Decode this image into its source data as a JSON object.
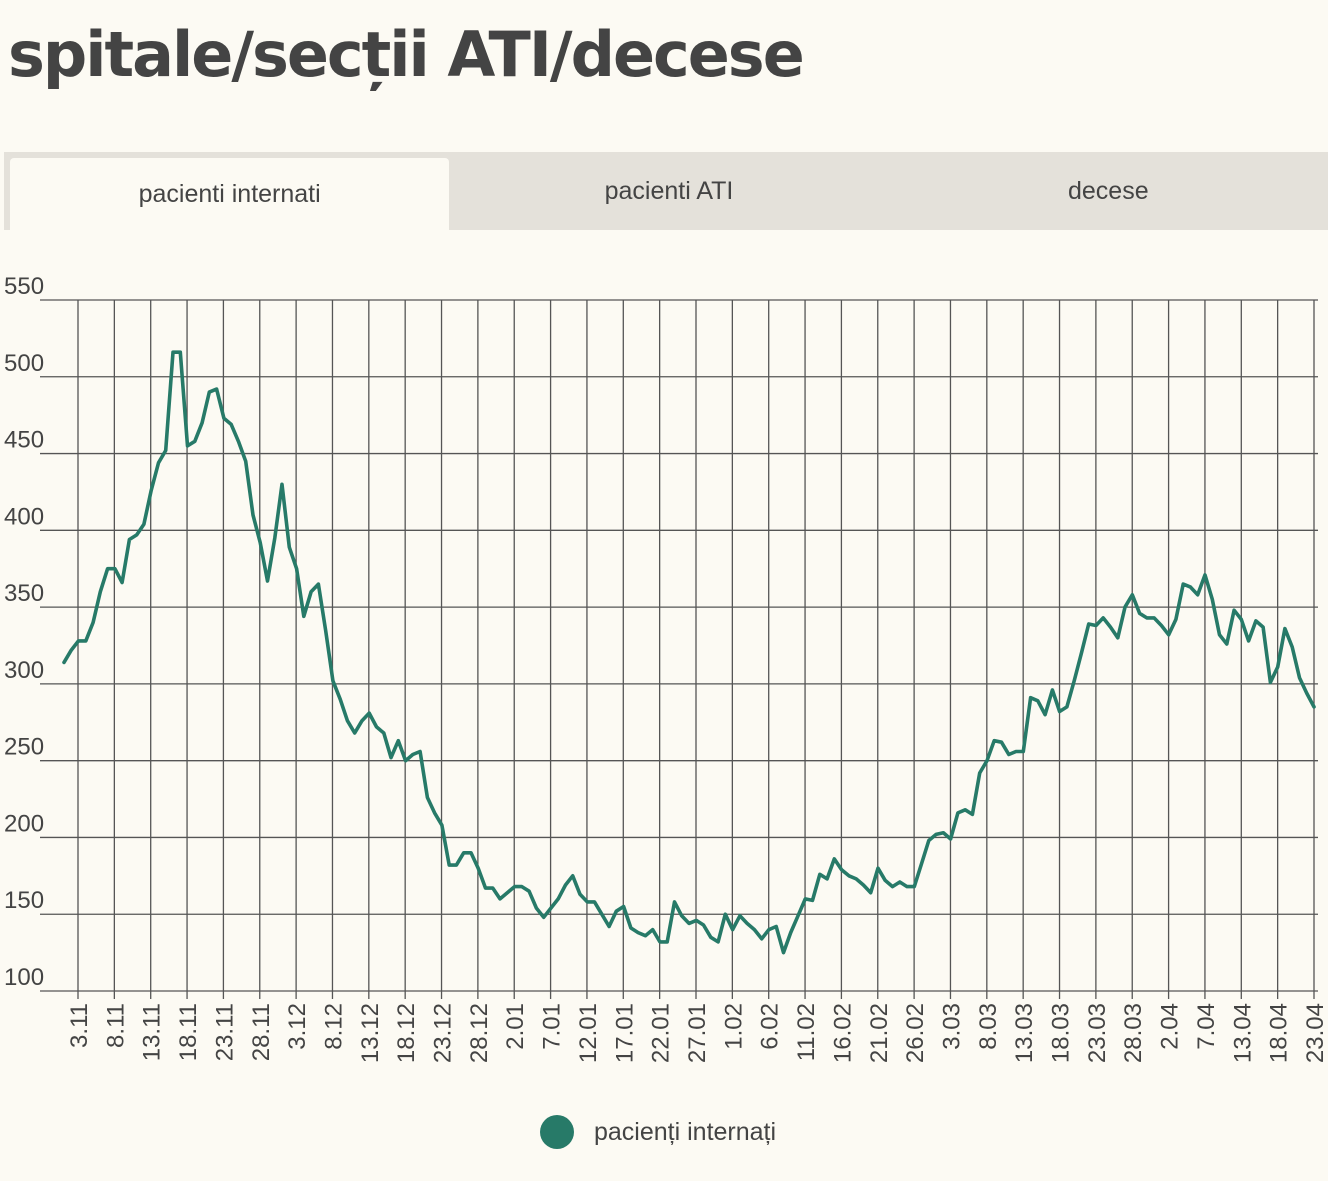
{
  "title": "spitale/secții ATI/decese",
  "tabs": [
    {
      "label": "pacienti internati",
      "active": true
    },
    {
      "label": "pacienti ATI",
      "active": false
    },
    {
      "label": "decese",
      "active": false
    }
  ],
  "colors": {
    "line": "#277a68",
    "grid": "#555555",
    "background": "#fcfaf3"
  },
  "chart_data": {
    "type": "line",
    "title": "",
    "xlabel": "",
    "ylabel": "",
    "ylim": [
      100,
      550
    ],
    "yticks": [
      100,
      150,
      200,
      250,
      300,
      350,
      400,
      450,
      500,
      550
    ],
    "xticks": [
      "3.11",
      "8.11",
      "13.11",
      "18.11",
      "23.11",
      "28.11",
      "3.12",
      "8.12",
      "13.12",
      "18.12",
      "23.12",
      "28.12",
      "2.01",
      "7.01",
      "12.01",
      "17.01",
      "22.01",
      "27.01",
      "1.02",
      "6.02",
      "11.02",
      "16.02",
      "21.02",
      "26.02",
      "3.03",
      "8.03",
      "13.03",
      "18.03",
      "23.03",
      "28.03",
      "2.04",
      "7.04",
      "13.04",
      "18.04",
      "23.04"
    ],
    "grid": true,
    "legend": "bottom",
    "series": [
      {
        "name": "pacienți internați",
        "values": [
          314,
          322,
          328,
          328,
          340,
          360,
          375,
          375,
          366,
          394,
          397,
          404,
          426,
          444,
          452,
          516,
          516,
          455,
          458,
          470,
          490,
          492,
          473,
          469,
          458,
          445,
          410,
          392,
          367,
          395,
          430,
          389,
          375,
          344,
          360,
          365,
          335,
          302,
          290,
          276,
          268,
          276,
          281,
          272,
          268,
          252,
          263,
          250,
          254,
          256,
          226,
          216,
          208,
          182,
          182,
          190,
          190,
          180,
          167,
          167,
          160,
          164,
          168,
          168,
          165,
          154,
          148,
          154,
          160,
          169,
          175,
          163,
          158,
          158,
          150,
          142,
          152,
          155,
          141,
          138,
          136,
          140,
          132,
          132,
          158,
          149,
          144,
          146,
          143,
          135,
          132,
          150,
          140,
          149,
          144,
          140,
          134,
          140,
          142,
          125,
          138,
          149,
          160,
          159,
          176,
          173,
          186,
          179,
          175,
          173,
          169,
          164,
          180,
          172,
          168,
          171,
          168,
          168,
          183,
          198,
          202,
          203,
          199,
          216,
          218,
          215,
          242,
          250,
          263,
          262,
          254,
          256,
          256,
          291,
          289,
          280,
          296,
          282,
          285,
          302,
          320,
          339,
          338,
          343,
          337,
          330,
          350,
          358,
          346,
          343,
          343,
          338,
          332,
          342,
          365,
          363,
          358,
          371,
          355,
          332,
          326,
          348,
          342,
          328,
          341,
          337,
          301,
          311,
          336,
          324,
          304,
          294,
          285
        ]
      }
    ]
  }
}
